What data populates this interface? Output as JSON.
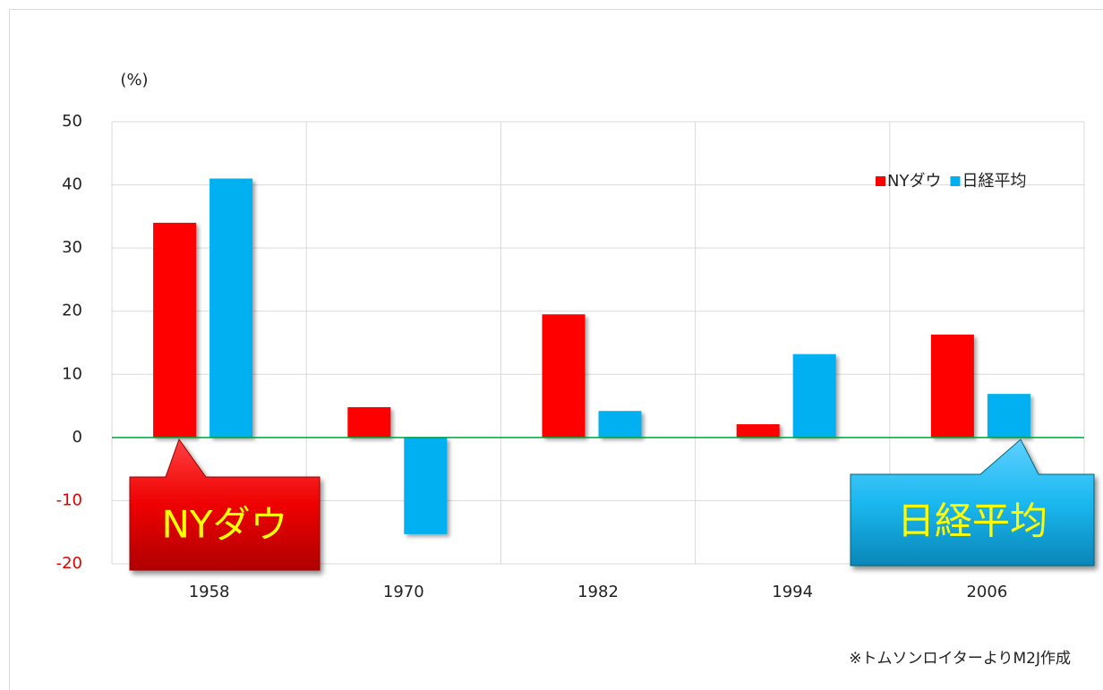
{
  "chart_data": {
    "type": "bar",
    "y_axis_label": "(%)",
    "categories": [
      "1958",
      "1970",
      "1982",
      "1994",
      "2006"
    ],
    "series": [
      {
        "name": "NYダウ",
        "color": "#ff0000",
        "values": [
          34,
          4.8,
          19.5,
          2.1,
          16.3
        ]
      },
      {
        "name": "日経平均",
        "color": "#00b0f0",
        "values": [
          41,
          -15.3,
          4.2,
          13.2,
          6.9
        ]
      }
    ],
    "ylim": [
      -20,
      50
    ],
    "yticks": [
      -20,
      -10,
      0,
      10,
      20,
      30,
      40,
      50
    ],
    "grid": true,
    "legend": "upper right",
    "annotations": [
      "NYダウ",
      "日経平均"
    ],
    "source": "※トムソンロイターよりM2J作成"
  }
}
